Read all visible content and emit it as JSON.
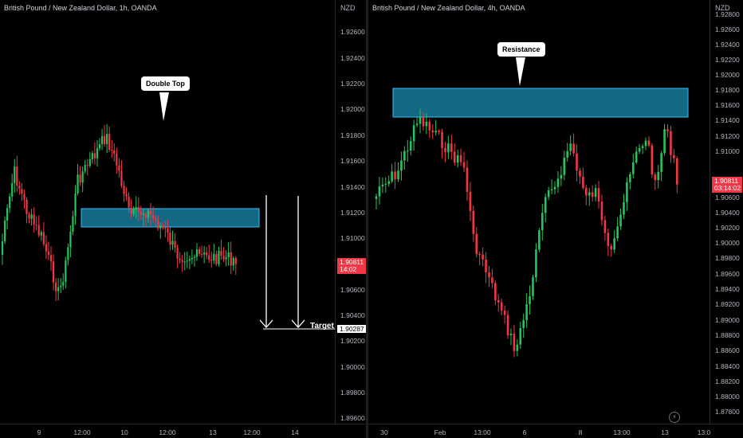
{
  "left": {
    "title": "British Pound / New Zealand Dollar, 1h, OANDA",
    "currency": "NZD",
    "price_ticks": [
      "1.92600",
      "1.92400",
      "1.92200",
      "1.92000",
      "1.91800",
      "1.91600",
      "1.91400",
      "1.91200",
      "1.91000",
      "1.90600",
      "1.90400",
      "1.90200",
      "1.90000",
      "1.89800",
      "1.89600"
    ],
    "last_price": "1.90811",
    "countdown": "14:02",
    "target_price": "1.90287",
    "time_labels": [
      "9",
      "12:00",
      "10",
      "12:00",
      "13",
      "12:00",
      "14"
    ],
    "callout": "Double Top",
    "target_label": "Target"
  },
  "right": {
    "title": "British Pound / New Zealand Dollar, 4h, OANDA",
    "currency": "NZD",
    "price_ticks": [
      "1.92800",
      "1.92600",
      "1.92400",
      "1.92200",
      "1.92000",
      "1.91800",
      "1.91600",
      "1.91400",
      "1.91200",
      "1.91000",
      "1.90600",
      "1.90400",
      "1.90200",
      "1.90000",
      "1.89800",
      "1.89600",
      "1.89400",
      "1.89200",
      "1.89000",
      "1.88800",
      "1.88600",
      "1.88400",
      "1.88200",
      "1.88000",
      "1.87800"
    ],
    "last_price": "1.90811",
    "countdown": "03:14:02",
    "time_labels": [
      "30",
      "Feb",
      "13:00",
      "6",
      "8",
      "13:00",
      "13",
      "13:0"
    ],
    "callout": "Resistance"
  },
  "colors": {
    "up": "#22c55e",
    "down": "#f23645",
    "zone": "#1a8cb0",
    "bg": "#000000"
  },
  "icons": {
    "lightning": "lightning-icon"
  }
}
